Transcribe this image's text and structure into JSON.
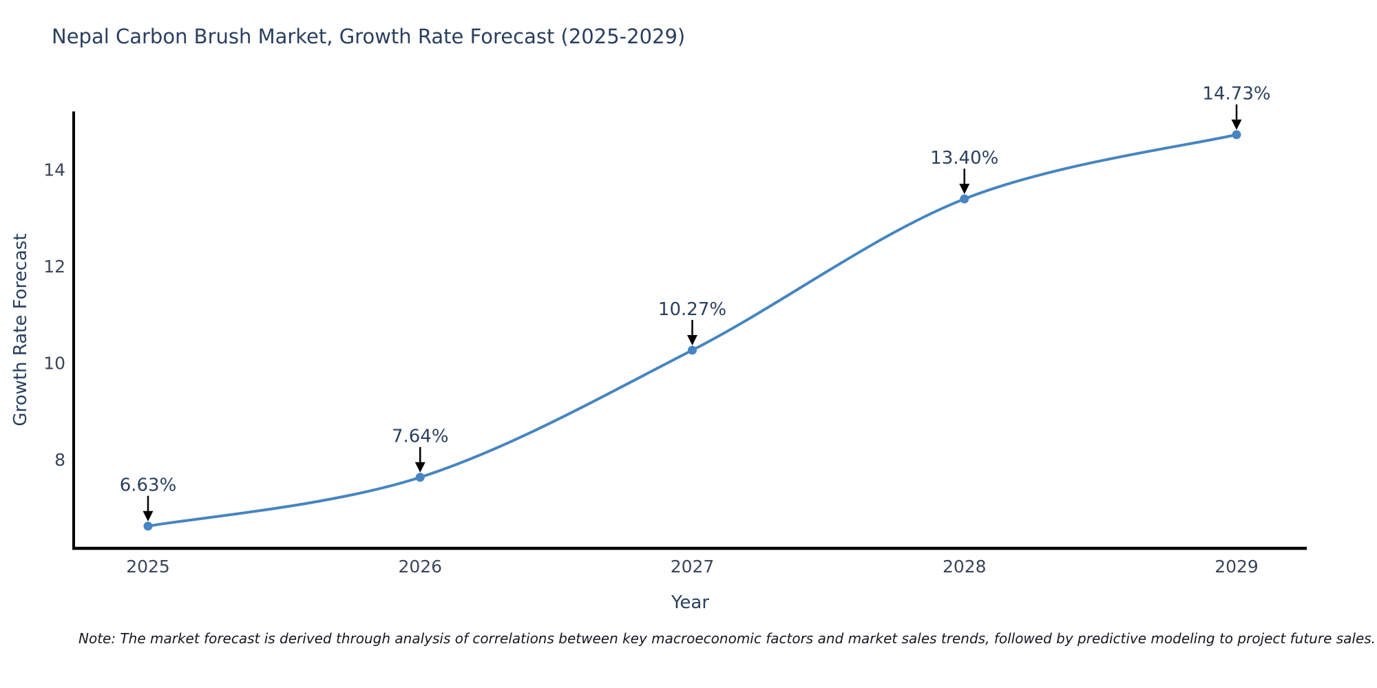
{
  "header": {
    "title": "Nepal Carbon Brush Market, Growth Rate Forecast (2025-2029)"
  },
  "footnote": {
    "text": "Note: The market forecast is derived through analysis of correlations between key macroeconomic factors and market sales trends, followed by predictive modeling to project future sales."
  },
  "colors": {
    "background": "#ffffff",
    "line": "#4685c0",
    "marker": "#4685c0",
    "title": "#2a3f5f",
    "axis_title": "#2a3f5f",
    "tick_label": "#3b4559",
    "annotation": "#2a3f5f",
    "axis_line": "#000000",
    "arrow": "#000000",
    "note": "#14181f"
  },
  "chart_data": {
    "type": "line",
    "title": "Nepal Carbon Brush Market, Growth Rate Forecast (2025-2029)",
    "xlabel": "Year",
    "ylabel": "Growth Rate Forecast",
    "x": [
      2025,
      2026,
      2027,
      2028,
      2029
    ],
    "series": [
      {
        "name": "Growth Rate Forecast",
        "values": [
          6.63,
          7.64,
          10.27,
          13.4,
          14.73
        ]
      }
    ],
    "point_labels": [
      "6.63%",
      "7.64%",
      "10.27%",
      "13.40%",
      "14.73%"
    ],
    "xtick_labels": [
      "2025",
      "2026",
      "2027",
      "2028",
      "2029"
    ],
    "yticks": [
      8,
      10,
      12,
      14
    ],
    "ylim": [
      6.17,
      15.21
    ],
    "grid": false,
    "legend_position": "none",
    "line_shape": "spline",
    "marker": "circle",
    "annotations_have_arrows": true
  }
}
